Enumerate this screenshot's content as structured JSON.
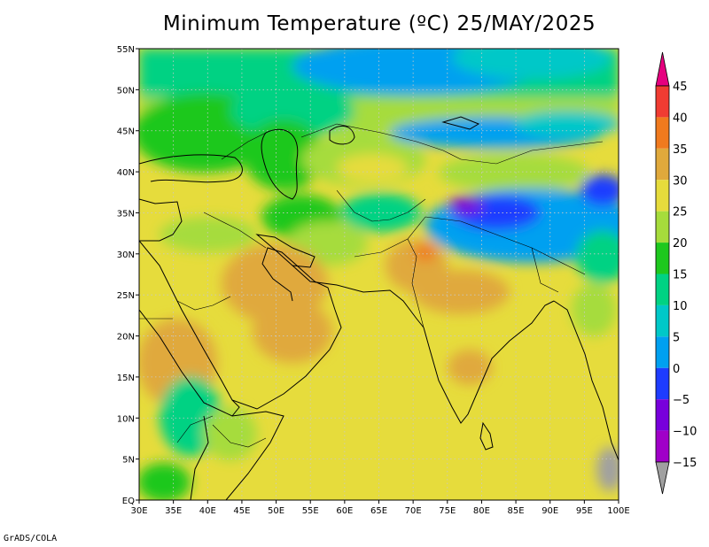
{
  "title": "Minimum Temperature (ºC) 25/MAY/2025",
  "credit": "GrADS/COLA",
  "map": {
    "lon_range": [
      30,
      100
    ],
    "lat_range": [
      0,
      55
    ],
    "lon_ticks": [
      "30E",
      "35E",
      "40E",
      "45E",
      "50E",
      "55E",
      "60E",
      "65E",
      "70E",
      "75E",
      "80E",
      "85E",
      "90E",
      "95E",
      "100E"
    ],
    "lat_ticks": [
      "EQ",
      "5N",
      "10N",
      "15N",
      "20N",
      "25N",
      "30N",
      "35N",
      "40N",
      "45N",
      "50N",
      "55N"
    ],
    "gridlines": "dotted"
  },
  "colorbar": {
    "labels": [
      "45",
      "40",
      "35",
      "30",
      "25",
      "20",
      "15",
      "10",
      "5",
      "0",
      "−5",
      "−10",
      "−15"
    ],
    "colors": [
      "#e6007f",
      "#f03c32",
      "#f07a1e",
      "#e0a93c",
      "#e6dc3c",
      "#a6dc3c",
      "#1ec81e",
      "#00d283",
      "#00c8c8",
      "#00a0f0",
      "#1e3cff",
      "#7800dc",
      "#a000c8"
    ],
    "over_color": "#e6007f",
    "under_color": "#a0a0a0"
  }
}
